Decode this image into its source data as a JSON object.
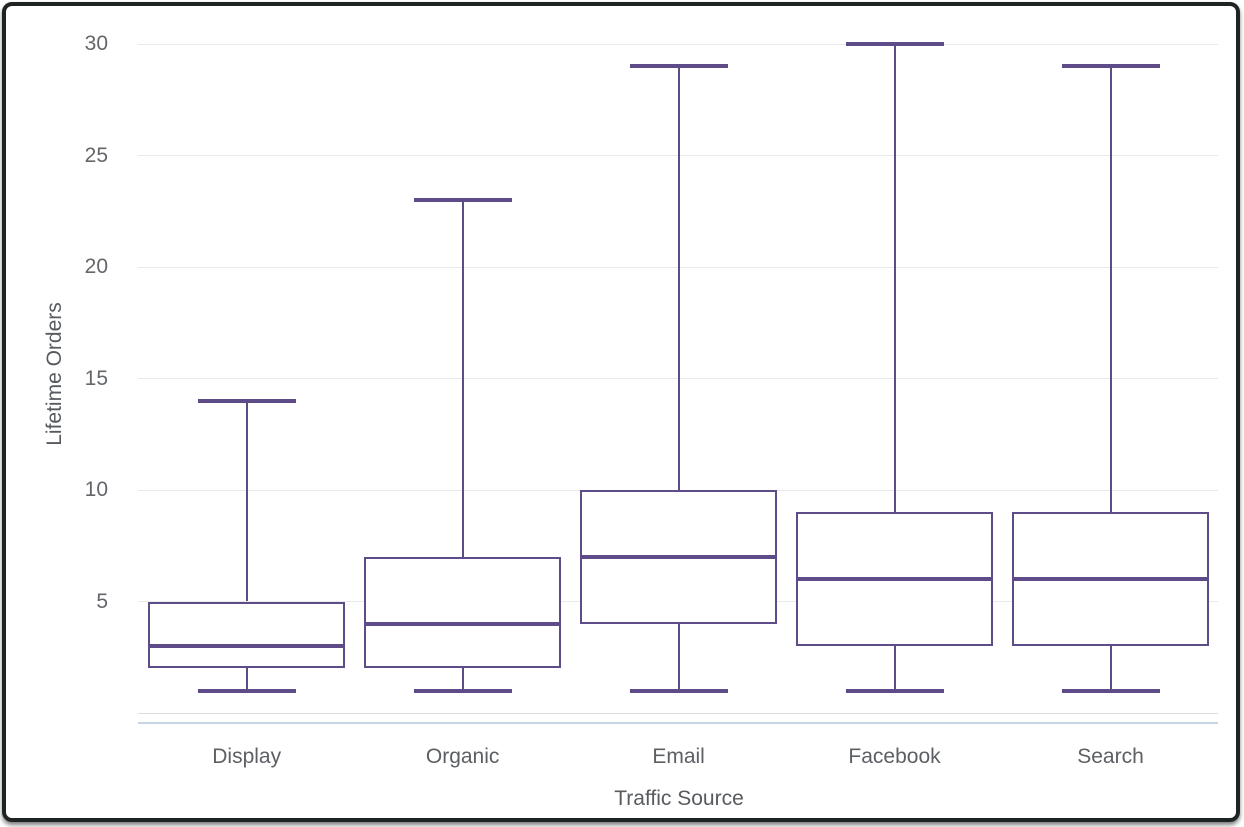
{
  "chart_data": {
    "type": "boxplot",
    "title": "",
    "xlabel": "Traffic Source",
    "ylabel": "Lifetime Orders",
    "categories": [
      "Display",
      "Organic",
      "Email",
      "Facebook",
      "Search"
    ],
    "yticks": [
      5,
      10,
      15,
      20,
      25,
      30
    ],
    "ylim": [
      0,
      30
    ],
    "grid": true,
    "legend": "none",
    "series": [
      {
        "name": "Display",
        "min": 1,
        "q1": 2,
        "median": 3,
        "q3": 5,
        "max": 14
      },
      {
        "name": "Organic",
        "min": 1,
        "q1": 2,
        "median": 4,
        "q3": 7,
        "max": 23
      },
      {
        "name": "Email",
        "min": 1,
        "q1": 4,
        "median": 7,
        "q3": 10,
        "max": 29
      },
      {
        "name": "Facebook",
        "min": 1,
        "q1": 3,
        "median": 6,
        "q3": 9,
        "max": 30
      },
      {
        "name": "Search",
        "min": 1,
        "q1": 3,
        "median": 6,
        "q3": 9,
        "max": 29
      }
    ],
    "colors": {
      "box_stroke": "#5d4c87",
      "box_fill": "#ffffff",
      "gridline": "#e9e9e9",
      "zero_line": "#dedede",
      "axis_line": "#c9d3e6",
      "tick_label": "#63666a",
      "category_label": "#5c6064",
      "axis_title": "#575b5f",
      "frame": "#1e2424",
      "background": "#ffffff"
    }
  }
}
